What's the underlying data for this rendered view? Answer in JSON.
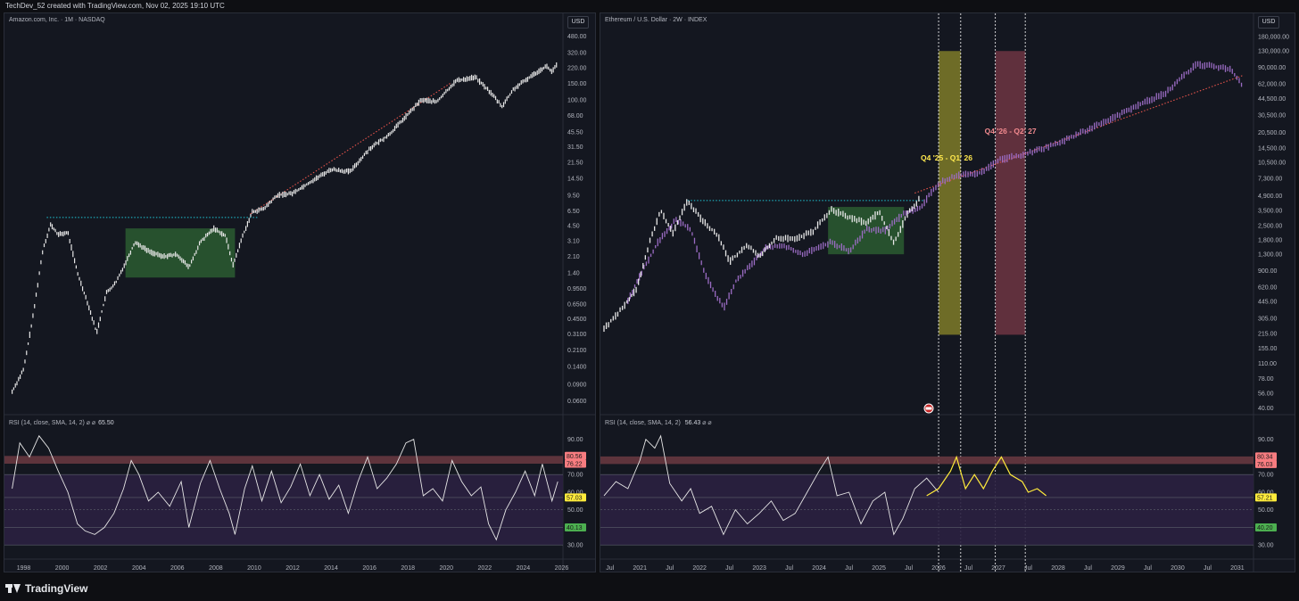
{
  "header": {
    "credit": "TechDev_52 created with TradingView.com, Nov 02, 2025 19:10 UTC"
  },
  "footer": {
    "brand": "TradingView"
  },
  "chart_data": [
    {
      "type": "candlestick",
      "title": "Amazon.com, Inc. · 1M · NASDAQ",
      "currency": "USD",
      "yscale": "log",
      "y_ticks": [
        "480.00",
        "320.00",
        "220.00",
        "150.00",
        "100.00",
        "68.00",
        "45.50",
        "31.50",
        "21.50",
        "14.50",
        "9.50",
        "6.50",
        "4.50",
        "3.10",
        "2.10",
        "1.40",
        "0.9500",
        "0.6500",
        "0.4500",
        "0.3100",
        "0.2100",
        "0.1400",
        "0.0900",
        "0.0600"
      ],
      "x_ticks": [
        "1998",
        "2000",
        "2002",
        "2004",
        "2006",
        "2008",
        "2010",
        "2012",
        "2014",
        "2016",
        "2018",
        "2020",
        "2022",
        "2024",
        "2026"
      ],
      "color": "#e8e8e8",
      "price_path": [
        [
          1997.4,
          0.075
        ],
        [
          1998.0,
          0.13
        ],
        [
          1998.5,
          0.5
        ],
        [
          1999.0,
          2.5
        ],
        [
          1999.4,
          4.6
        ],
        [
          1999.8,
          3.6
        ],
        [
          2000.3,
          3.8
        ],
        [
          2000.8,
          1.4
        ],
        [
          2001.3,
          0.7
        ],
        [
          2001.8,
          0.32
        ],
        [
          2002.3,
          0.85
        ],
        [
          2002.8,
          1.1
        ],
        [
          2003.3,
          1.8
        ],
        [
          2003.8,
          3.0
        ],
        [
          2004.5,
          2.4
        ],
        [
          2005.2,
          2.1
        ],
        [
          2006.0,
          2.2
        ],
        [
          2006.6,
          1.6
        ],
        [
          2007.2,
          3.0
        ],
        [
          2007.9,
          4.2
        ],
        [
          2008.5,
          3.5
        ],
        [
          2008.9,
          1.7
        ],
        [
          2009.4,
          3.5
        ],
        [
          2009.9,
          6.3
        ],
        [
          2010.5,
          6.8
        ],
        [
          2011.2,
          9.5
        ],
        [
          2012.0,
          10.0
        ],
        [
          2013.0,
          13.5
        ],
        [
          2014.0,
          18.0
        ],
        [
          2015.0,
          17.0
        ],
        [
          2016.0,
          30.0
        ],
        [
          2017.0,
          42.0
        ],
        [
          2018.0,
          70.0
        ],
        [
          2018.7,
          100.0
        ],
        [
          2019.5,
          95.0
        ],
        [
          2020.5,
          160.0
        ],
        [
          2021.5,
          175.0
        ],
        [
          2022.3,
          120.0
        ],
        [
          2022.9,
          85.0
        ],
        [
          2023.5,
          130.0
        ],
        [
          2024.5,
          185.0
        ],
        [
          2025.2,
          230.0
        ],
        [
          2025.5,
          200.0
        ],
        [
          2025.8,
          245.0
        ]
      ],
      "range_box": {
        "x": [
          2003.3,
          2009.0
        ],
        "y": [
          1.25,
          4.2
        ],
        "color": "#2f6b35"
      },
      "horizontal_level": {
        "y": 5.5,
        "x": [
          1999.2,
          2010.2
        ],
        "color": "#1ec8d8"
      },
      "trendline": {
        "from": [
          2009.8,
          6.0
        ],
        "to": [
          2020.2,
          150.0
        ],
        "color": "#e5534b"
      },
      "rsi": {
        "label": "RSI (14, close, SMA, 14, 2)",
        "value": "65.50",
        "y_ticks": [
          "90.00",
          "70.00",
          "60.00",
          "50.00",
          "30.00"
        ],
        "badges": [
          {
            "text": "80.56",
            "bg": "#f77c80",
            "fg": "#1a1a1a"
          },
          {
            "text": "76.22",
            "bg": "#f77c80",
            "fg": "#1a1a1a"
          },
          {
            "text": "57.03",
            "bg": "#ffeb3b",
            "fg": "#1a1a1a"
          },
          {
            "text": "40.13",
            "bg": "#4caf50",
            "fg": "#1a1a1a"
          }
        ],
        "ob_band": [
          76.2,
          80.6
        ],
        "levels": [
          70,
          57,
          40,
          30
        ],
        "path": [
          [
            1997.4,
            62
          ],
          [
            1997.8,
            88
          ],
          [
            1998.3,
            80
          ],
          [
            1998.8,
            92
          ],
          [
            1999.3,
            85
          ],
          [
            1999.8,
            72
          ],
          [
            2000.3,
            60
          ],
          [
            2000.8,
            42
          ],
          [
            2001.2,
            38
          ],
          [
            2001.7,
            36
          ],
          [
            2002.2,
            40
          ],
          [
            2002.7,
            48
          ],
          [
            2003.2,
            62
          ],
          [
            2003.6,
            78
          ],
          [
            2004.0,
            70
          ],
          [
            2004.5,
            55
          ],
          [
            2005.0,
            60
          ],
          [
            2005.6,
            52
          ],
          [
            2006.2,
            66
          ],
          [
            2006.6,
            40
          ],
          [
            2007.2,
            65
          ],
          [
            2007.7,
            78
          ],
          [
            2008.2,
            62
          ],
          [
            2008.7,
            48
          ],
          [
            2009.0,
            36
          ],
          [
            2009.5,
            62
          ],
          [
            2009.9,
            75
          ],
          [
            2010.4,
            55
          ],
          [
            2010.9,
            72
          ],
          [
            2011.4,
            54
          ],
          [
            2011.9,
            63
          ],
          [
            2012.4,
            76
          ],
          [
            2012.9,
            58
          ],
          [
            2013.4,
            70
          ],
          [
            2013.9,
            56
          ],
          [
            2014.4,
            64
          ],
          [
            2014.9,
            48
          ],
          [
            2015.4,
            66
          ],
          [
            2015.9,
            80
          ],
          [
            2016.4,
            62
          ],
          [
            2016.9,
            68
          ],
          [
            2017.4,
            76
          ],
          [
            2017.9,
            88
          ],
          [
            2018.3,
            90
          ],
          [
            2018.8,
            58
          ],
          [
            2019.3,
            62
          ],
          [
            2019.8,
            55
          ],
          [
            2020.3,
            78
          ],
          [
            2020.8,
            66
          ],
          [
            2021.3,
            58
          ],
          [
            2021.8,
            63
          ],
          [
            2022.2,
            42
          ],
          [
            2022.6,
            33
          ],
          [
            2023.1,
            50
          ],
          [
            2023.6,
            60
          ],
          [
            2024.1,
            72
          ],
          [
            2024.6,
            58
          ],
          [
            2025.0,
            76
          ],
          [
            2025.5,
            55
          ],
          [
            2025.8,
            66
          ]
        ]
      }
    },
    {
      "type": "candlestick",
      "title": "Ethereum / U.S. Dollar · 2W · INDEX",
      "currency": "USD",
      "yscale": "log",
      "y_ticks": [
        "180,000.00",
        "130,000.00",
        "90,000.00",
        "62,000.00",
        "44,500.00",
        "30,500.00",
        "20,500.00",
        "14,500.00",
        "10,500.00",
        "7,300.00",
        "4,900.00",
        "3,500.00",
        "2,500.00",
        "1,800.00",
        "1,300.00",
        "900.00",
        "620.00",
        "445.00",
        "305.00",
        "215.00",
        "155.00",
        "110.00",
        "78.00",
        "56.00",
        "40.00"
      ],
      "x_ticks": [
        "Jul",
        "2021",
        "Jul",
        "2022",
        "Jul",
        "2023",
        "Jul",
        "2024",
        "Jul",
        "2025",
        "Jul",
        "2026",
        "Jul",
        "2027",
        "Jul",
        "2028",
        "Jul",
        "2029",
        "Jul",
        "2030",
        "Jul",
        "2031"
      ],
      "color": "#e8e8e8",
      "projection_color": "#9b6cc4",
      "price_path": [
        [
          2020.4,
          240
        ],
        [
          2020.7,
          380
        ],
        [
          2020.95,
          600
        ],
        [
          2021.15,
          1600
        ],
        [
          2021.35,
          3500
        ],
        [
          2021.55,
          2100
        ],
        [
          2021.8,
          4400
        ],
        [
          2022.0,
          3000
        ],
        [
          2022.3,
          2000
        ],
        [
          2022.5,
          1100
        ],
        [
          2022.8,
          1600
        ],
        [
          2023.0,
          1250
        ],
        [
          2023.3,
          1900
        ],
        [
          2023.6,
          1800
        ],
        [
          2023.9,
          2200
        ],
        [
          2024.2,
          3600
        ],
        [
          2024.5,
          3000
        ],
        [
          2024.8,
          2600
        ],
        [
          2025.0,
          3400
        ],
        [
          2025.25,
          1700
        ],
        [
          2025.5,
          3400
        ],
        [
          2025.7,
          4700
        ]
      ],
      "projection_path": [
        [
          2020.8,
          450
        ],
        [
          2021.0,
          800
        ],
        [
          2021.3,
          1700
        ],
        [
          2021.6,
          2800
        ],
        [
          2021.85,
          2300
        ],
        [
          2022.1,
          800
        ],
        [
          2022.4,
          380
        ],
        [
          2022.6,
          700
        ],
        [
          2022.85,
          1000
        ],
        [
          2023.1,
          1500
        ],
        [
          2023.4,
          1600
        ],
        [
          2023.7,
          1300
        ],
        [
          2023.95,
          1450
        ],
        [
          2024.2,
          1700
        ],
        [
          2024.5,
          1400
        ],
        [
          2024.8,
          2300
        ],
        [
          2025.1,
          2200
        ],
        [
          2025.4,
          3200
        ],
        [
          2025.7,
          3800
        ],
        [
          2026.0,
          6500
        ],
        [
          2026.3,
          7800
        ],
        [
          2026.7,
          8200
        ],
        [
          2027.0,
          11000
        ],
        [
          2027.3,
          12000
        ],
        [
          2027.7,
          14000
        ],
        [
          2028.1,
          17000
        ],
        [
          2028.5,
          22000
        ],
        [
          2029.0,
          30000
        ],
        [
          2029.4,
          40000
        ],
        [
          2029.8,
          50000
        ],
        [
          2030.1,
          75000
        ],
        [
          2030.3,
          95000
        ],
        [
          2030.6,
          92000
        ],
        [
          2030.9,
          85000
        ],
        [
          2031.1,
          58000
        ]
      ],
      "range_box": {
        "x": [
          2024.15,
          2025.42
        ],
        "y": [
          1300,
          3800
        ],
        "color": "#2f6b35"
      },
      "horizontal_level": {
        "y": 4400,
        "x": [
          2021.8,
          2025.75
        ],
        "color": "#1ec8d8"
      },
      "trendline": {
        "from": [
          2025.6,
          5200
        ],
        "to": [
          2031.1,
          75000
        ],
        "color": "#e5534b"
      },
      "zones": [
        {
          "label": "Q4 '25 - Q1' 26",
          "x": [
            2026.0,
            2026.37
          ],
          "y": [
            210,
            130000
          ],
          "color": "#8c8a2a",
          "text_color": "#ffe84d"
        },
        {
          "label": "Q4 '26 - Q2' 27",
          "x": [
            2026.95,
            2027.45
          ],
          "y": [
            210,
            130000
          ],
          "color": "#7a3a47",
          "text_color": "#f38a8f"
        }
      ],
      "vertical_lines": [
        2026.0,
        2026.37,
        2026.95,
        2027.45
      ],
      "rsi": {
        "label": "RSI (14, close, SMA, 14, 2)",
        "value": "56.43",
        "y_ticks": [
          "90.00",
          "70.00",
          "60.00",
          "50.00",
          "30.00"
        ],
        "badges": [
          {
            "text": "80.34",
            "bg": "#f77c80",
            "fg": "#1a1a1a"
          },
          {
            "text": "76.03",
            "bg": "#f77c80",
            "fg": "#1a1a1a"
          },
          {
            "text": "57.21",
            "bg": "#ffeb3b",
            "fg": "#1a1a1a"
          },
          {
            "text": "40.20",
            "bg": "#4caf50",
            "fg": "#1a1a1a"
          }
        ],
        "ob_band": [
          76.0,
          80.3
        ],
        "levels": [
          70,
          57,
          40,
          30
        ],
        "path": [
          [
            2020.4,
            58
          ],
          [
            2020.6,
            66
          ],
          [
            2020.8,
            62
          ],
          [
            2021.0,
            78
          ],
          [
            2021.1,
            90
          ],
          [
            2021.25,
            85
          ],
          [
            2021.35,
            92
          ],
          [
            2021.5,
            65
          ],
          [
            2021.7,
            55
          ],
          [
            2021.85,
            62
          ],
          [
            2022.0,
            48
          ],
          [
            2022.2,
            52
          ],
          [
            2022.4,
            36
          ],
          [
            2022.6,
            50
          ],
          [
            2022.8,
            42
          ],
          [
            2023.0,
            48
          ],
          [
            2023.2,
            55
          ],
          [
            2023.4,
            44
          ],
          [
            2023.6,
            48
          ],
          [
            2023.8,
            60
          ],
          [
            2024.0,
            72
          ],
          [
            2024.15,
            80
          ],
          [
            2024.3,
            58
          ],
          [
            2024.5,
            60
          ],
          [
            2024.7,
            42
          ],
          [
            2024.9,
            55
          ],
          [
            2025.1,
            60
          ],
          [
            2025.25,
            36
          ],
          [
            2025.4,
            45
          ],
          [
            2025.6,
            62
          ],
          [
            2025.8,
            68
          ],
          [
            2026.0,
            60
          ]
        ],
        "projection_path": [
          [
            2025.8,
            58
          ],
          [
            2026.0,
            62
          ],
          [
            2026.2,
            72
          ],
          [
            2026.3,
            80
          ],
          [
            2026.45,
            62
          ],
          [
            2026.6,
            70
          ],
          [
            2026.75,
            62
          ],
          [
            2026.9,
            72
          ],
          [
            2027.05,
            80
          ],
          [
            2027.2,
            70
          ],
          [
            2027.4,
            66
          ],
          [
            2027.5,
            60
          ],
          [
            2027.65,
            62
          ],
          [
            2027.8,
            58
          ]
        ]
      }
    }
  ]
}
